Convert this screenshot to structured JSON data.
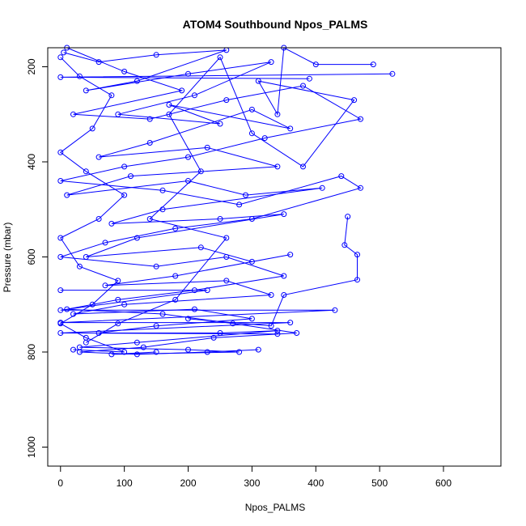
{
  "chart_data": {
    "type": "line",
    "title": "ATOM4 Southbound Npos_PALMS",
    "xlabel": "Npos_PALMS",
    "ylabel": "Pressure (mbar)",
    "xlim": [
      -20,
      690
    ],
    "ylim": [
      1040,
      160
    ],
    "y_reversed": true,
    "x_ticks": [
      0,
      100,
      200,
      300,
      400,
      500,
      600
    ],
    "y_ticks": [
      200,
      400,
      600,
      800,
      1000
    ],
    "grid": false,
    "legend": "none",
    "color": "#0000ff",
    "marker": "open-circle",
    "series": [
      {
        "points": [
          [
            5,
            170
          ],
          [
            60,
            190
          ],
          [
            150,
            175
          ],
          [
            260,
            165
          ],
          [
            120,
            230
          ],
          [
            40,
            250
          ],
          [
            200,
            215
          ],
          [
            330,
            190
          ],
          [
            210,
            260
          ],
          [
            90,
            300
          ],
          [
            250,
            320
          ],
          [
            170,
            280
          ],
          [
            360,
            330
          ],
          [
            300,
            290
          ],
          [
            140,
            360
          ],
          [
            60,
            390
          ],
          [
            230,
            370
          ],
          [
            340,
            410
          ],
          [
            110,
            430
          ],
          [
            10,
            470
          ],
          [
            200,
            440
          ],
          [
            290,
            470
          ],
          [
            410,
            455
          ],
          [
            160,
            500
          ],
          [
            80,
            530
          ],
          [
            250,
            520
          ],
          [
            350,
            510
          ],
          [
            120,
            560
          ],
          [
            40,
            600
          ],
          [
            220,
            580
          ],
          [
            300,
            610
          ],
          [
            360,
            595
          ],
          [
            180,
            640
          ],
          [
            70,
            660
          ],
          [
            260,
            650
          ],
          [
            330,
            680
          ],
          [
            100,
            700
          ],
          [
            20,
            720
          ],
          [
            210,
            710
          ],
          [
            300,
            730
          ],
          [
            150,
            745
          ],
          [
            60,
            760
          ],
          [
            250,
            760
          ],
          [
            340,
            755
          ],
          [
            120,
            780
          ],
          [
            30,
            790
          ],
          [
            200,
            795
          ],
          [
            280,
            800
          ],
          [
            80,
            805
          ],
          [
            150,
            800
          ]
        ]
      },
      {
        "points": [
          [
            10,
            160
          ],
          [
            100,
            210
          ],
          [
            190,
            250
          ],
          [
            20,
            300
          ],
          [
            140,
            310
          ],
          [
            260,
            270
          ],
          [
            380,
            240
          ],
          [
            470,
            310
          ],
          [
            320,
            350
          ],
          [
            200,
            390
          ],
          [
            100,
            410
          ],
          [
            0,
            440
          ],
          [
            160,
            460
          ],
          [
            280,
            490
          ],
          [
            440,
            430
          ],
          [
            470,
            455
          ],
          [
            300,
            520
          ],
          [
            180,
            540
          ],
          [
            70,
            570
          ],
          [
            0,
            600
          ],
          [
            150,
            620
          ],
          [
            260,
            600
          ],
          [
            350,
            640
          ],
          [
            210,
            670
          ],
          [
            90,
            690
          ],
          [
            10,
            710
          ],
          [
            160,
            720
          ],
          [
            270,
            740
          ],
          [
            370,
            760
          ],
          [
            240,
            770
          ],
          [
            130,
            790
          ],
          [
            30,
            800
          ],
          [
            120,
            805
          ],
          [
            230,
            800
          ],
          [
            310,
            795
          ]
        ]
      },
      {
        "points": [
          [
            0,
            180
          ],
          [
            30,
            220
          ],
          [
            80,
            260
          ],
          [
            50,
            330
          ],
          [
            0,
            380
          ],
          [
            40,
            420
          ],
          [
            100,
            470
          ],
          [
            60,
            520
          ],
          [
            0,
            560
          ],
          [
            30,
            620
          ],
          [
            90,
            650
          ],
          [
            50,
            700
          ],
          [
            0,
            740
          ],
          [
            40,
            770
          ],
          [
            100,
            800
          ],
          [
            20,
            795
          ]
        ]
      },
      {
        "points": [
          [
            520,
            215
          ],
          [
            0,
            222
          ],
          [
            390,
            225
          ]
        ]
      },
      {
        "points": [
          [
            0,
            670
          ],
          [
            230,
            670
          ],
          [
            0,
            712
          ],
          [
            430,
            712
          ],
          [
            0,
            738
          ],
          [
            360,
            738
          ],
          [
            0,
            760
          ],
          [
            340,
            762
          ]
        ]
      },
      {
        "points": [
          [
            450,
            515
          ],
          [
            445,
            575
          ],
          [
            465,
            595
          ],
          [
            465,
            648
          ],
          [
            350,
            680
          ],
          [
            330,
            745
          ],
          [
            200,
            730
          ]
        ]
      },
      {
        "points": [
          [
            490,
            195
          ],
          [
            400,
            195
          ],
          [
            350,
            160
          ],
          [
            340,
            300
          ],
          [
            310,
            230
          ],
          [
            460,
            270
          ],
          [
            380,
            410
          ],
          [
            300,
            340
          ],
          [
            250,
            180
          ],
          [
            170,
            300
          ],
          [
            220,
            420
          ],
          [
            140,
            520
          ],
          [
            260,
            560
          ],
          [
            180,
            690
          ],
          [
            90,
            740
          ],
          [
            40,
            780
          ]
        ]
      }
    ]
  }
}
